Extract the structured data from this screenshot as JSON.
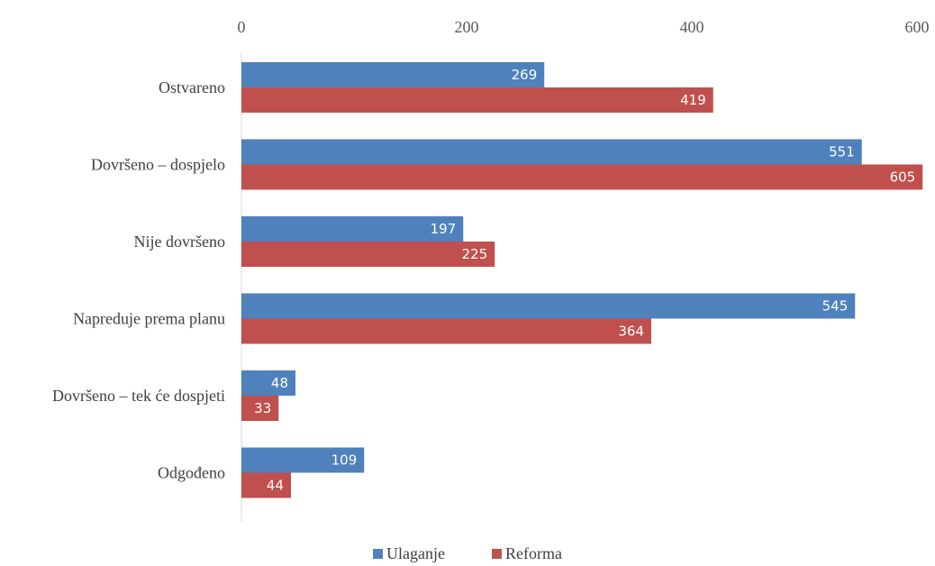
{
  "chart_data": {
    "type": "bar",
    "orientation": "horizontal",
    "categories": [
      "Ostvareno",
      "Dovršeno – dospjelo",
      "Nije dovršeno",
      "Napreduje prema planu",
      "Dovršeno – tek će dospjeti",
      "Odgođeno"
    ],
    "series": [
      {
        "name": "Ulaganje",
        "color": "#4F81BD",
        "values": [
          269,
          551,
          197,
          545,
          48,
          109
        ]
      },
      {
        "name": "Reforma",
        "color": "#C0504D",
        "values": [
          419,
          605,
          225,
          364,
          33,
          44
        ]
      }
    ],
    "xlim": [
      0,
      600
    ],
    "xticks": [
      0,
      200,
      400,
      600
    ],
    "x_axis_position": "top",
    "grid": false,
    "legend_position": "bottom",
    "data_labels": true
  }
}
